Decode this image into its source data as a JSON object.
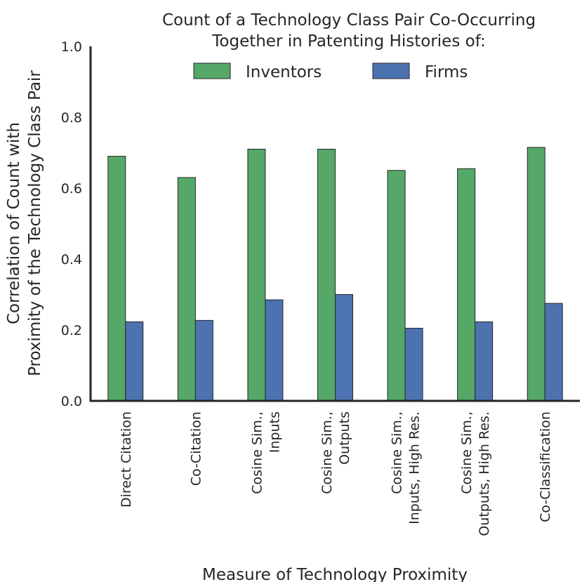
{
  "chart_data": {
    "type": "bar",
    "title": [
      "Count of a Technology Class Pair Co-Occurring",
      "Together in Patenting Histories of:"
    ],
    "xlabel": "Measure of Technology Proximity",
    "ylabel": [
      "Correlation of Count with",
      "Proximity of the Technology Class Pair"
    ],
    "ylim": [
      0,
      1.0
    ],
    "yticks": [
      "0.0",
      "0.2",
      "0.4",
      "0.6",
      "0.8",
      "1.0"
    ],
    "legend_position": "top-center",
    "categories": [
      [
        "Direct Citation"
      ],
      [
        "Co-Citation"
      ],
      [
        "Cosine Sim.,",
        "Inputs"
      ],
      [
        "Cosine Sim.,",
        "Outputs"
      ],
      [
        "Cosine Sim.,",
        "Inputs, High Res."
      ],
      [
        "Cosine Sim.,",
        "Outputs, High Res."
      ],
      [
        "Co-Classification"
      ]
    ],
    "series": [
      {
        "name": "Inventors",
        "color": "#55a868",
        "values": [
          0.69,
          0.63,
          0.71,
          0.71,
          0.65,
          0.655,
          0.715
        ]
      },
      {
        "name": "Firms",
        "color": "#4c72b0",
        "values": [
          0.223,
          0.227,
          0.285,
          0.3,
          0.205,
          0.223,
          0.275
        ]
      }
    ]
  }
}
